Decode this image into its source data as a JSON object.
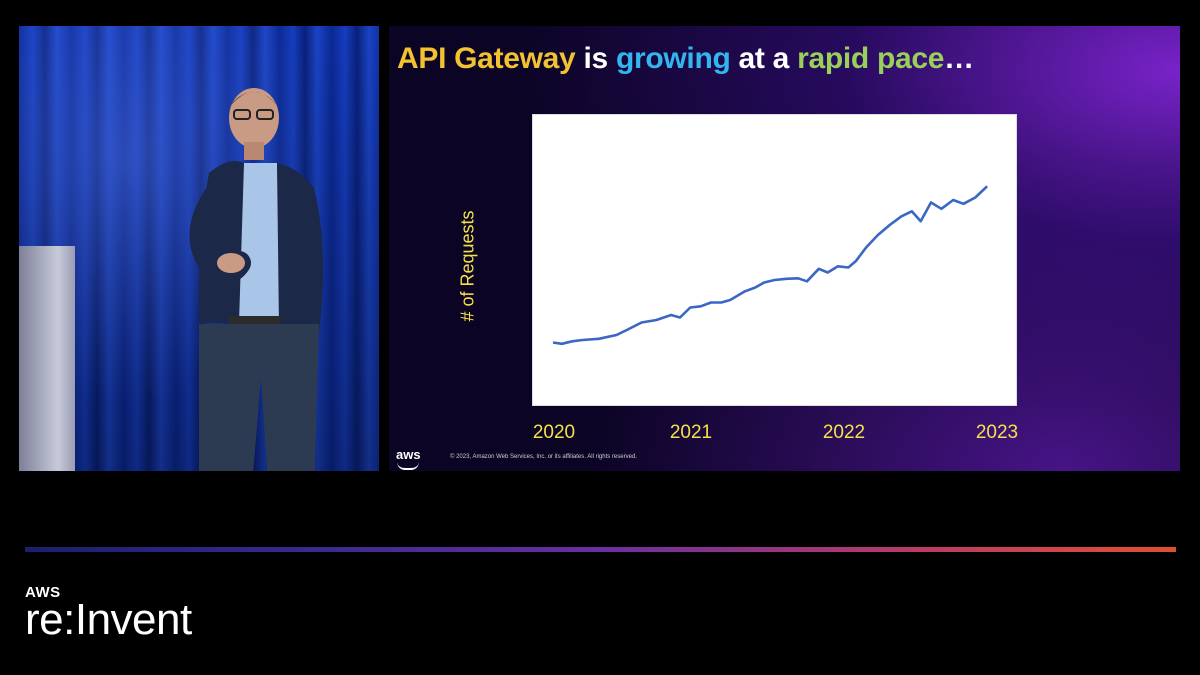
{
  "slide": {
    "title_parts": {
      "api": "API Gateway",
      "is": " is ",
      "growing": "growing",
      "at": " at a ",
      "rapid": "rapid pace",
      "ellipsis": "…"
    },
    "aws_mark": "aws",
    "copyright": "© 2023, Amazon Web Services, Inc. or its affiliates. All rights reserved."
  },
  "chart_data": {
    "type": "line",
    "title": "",
    "ylabel": "# of Requests",
    "xlabel": "",
    "x_ticks": [
      "2020",
      "2021",
      "2022",
      "2023"
    ],
    "xlim": [
      2020.0,
      2023.0
    ],
    "ylim": [
      0,
      100
    ],
    "grid": false,
    "series": [
      {
        "color": "#3a66c4",
        "points": [
          [
            2020.0,
            17
          ],
          [
            2020.06,
            16.5
          ],
          [
            2020.13,
            17.5
          ],
          [
            2020.2,
            18
          ],
          [
            2020.31,
            18.5
          ],
          [
            2020.43,
            20
          ],
          [
            2020.5,
            22
          ],
          [
            2020.6,
            25
          ],
          [
            2020.7,
            26
          ],
          [
            2020.8,
            28
          ],
          [
            2020.86,
            27
          ],
          [
            2020.93,
            31
          ],
          [
            2021.0,
            31.5
          ],
          [
            2021.07,
            33
          ],
          [
            2021.14,
            33
          ],
          [
            2021.2,
            34
          ],
          [
            2021.3,
            37.5
          ],
          [
            2021.37,
            39
          ],
          [
            2021.43,
            41
          ],
          [
            2021.5,
            42
          ],
          [
            2021.58,
            42.5
          ],
          [
            2021.66,
            42.7
          ],
          [
            2021.72,
            41.5
          ],
          [
            2021.8,
            46.5
          ],
          [
            2021.86,
            45
          ],
          [
            2021.93,
            47.5
          ],
          [
            2022.0,
            47
          ],
          [
            2022.05,
            49.5
          ],
          [
            2022.12,
            55
          ],
          [
            2022.2,
            60
          ],
          [
            2022.28,
            64
          ],
          [
            2022.36,
            67.5
          ],
          [
            2022.43,
            69.5
          ],
          [
            2022.49,
            65.5
          ],
          [
            2022.56,
            73
          ],
          [
            2022.63,
            70.5
          ],
          [
            2022.71,
            74
          ],
          [
            2022.78,
            72.5
          ],
          [
            2022.86,
            75
          ],
          [
            2022.94,
            79.5
          ]
        ]
      }
    ]
  },
  "footer": {
    "brand_aws": "AWS",
    "brand_event": "re:Invent",
    "accent_colors": [
      "#1b1f6e",
      "#6b2fa0",
      "#e0502f"
    ]
  }
}
